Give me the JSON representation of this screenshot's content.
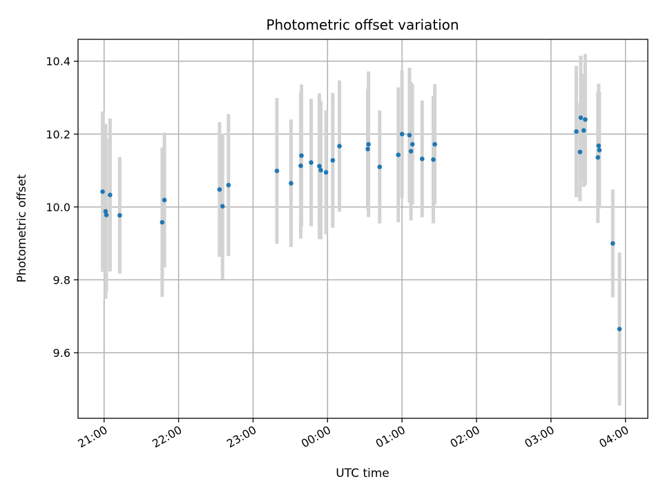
{
  "chart_data": {
    "type": "scatter",
    "title": "Photometric offset variation",
    "xlabel": "UTC time",
    "ylabel": "Photometric offset",
    "x_unit": "hours since 00:00 UTC",
    "xlim": [
      -3.35,
      4.3
    ],
    "ylim": [
      9.42,
      10.46
    ],
    "x_ticks": [
      -3,
      -2,
      -1,
      0,
      1,
      2,
      3,
      4
    ],
    "x_tick_labels": [
      "21:00",
      "22:00",
      "23:00",
      "00:00",
      "01:00",
      "02:00",
      "03:00",
      "04:00"
    ],
    "y_ticks": [
      9.6,
      9.8,
      10.0,
      10.2,
      10.4
    ],
    "y_tick_labels": [
      "9.6",
      "9.8",
      "10.0",
      "10.2",
      "10.4"
    ],
    "grid": true,
    "colors": {
      "points": "#1f77b4",
      "errorbars": "#d3d3d3"
    },
    "series": [
      {
        "points": [
          {
            "x": -3.02,
            "y": 10.042,
            "err": 0.22
          },
          {
            "x": -2.98,
            "y": 9.988,
            "err": 0.24
          },
          {
            "x": -2.97,
            "y": 9.978,
            "err": 0.21
          },
          {
            "x": -2.92,
            "y": 10.033,
            "err": 0.21
          },
          {
            "x": -2.79,
            "y": 9.977,
            "err": 0.16
          },
          {
            "x": -2.22,
            "y": 9.958,
            "err": 0.205
          },
          {
            "x": -2.19,
            "y": 10.019,
            "err": 0.185
          },
          {
            "x": -1.45,
            "y": 10.048,
            "err": 0.185
          },
          {
            "x": -1.41,
            "y": 10.002,
            "err": 0.2
          },
          {
            "x": -1.33,
            "y": 10.06,
            "err": 0.195
          },
          {
            "x": -0.68,
            "y": 10.099,
            "err": 0.2
          },
          {
            "x": -0.49,
            "y": 10.065,
            "err": 0.175
          },
          {
            "x": -0.36,
            "y": 10.113,
            "err": 0.2
          },
          {
            "x": -0.35,
            "y": 10.141,
            "err": 0.195
          },
          {
            "x": -0.22,
            "y": 10.122,
            "err": 0.175
          },
          {
            "x": -0.11,
            "y": 10.112,
            "err": 0.2
          },
          {
            "x": -0.09,
            "y": 10.101,
            "err": 0.19
          },
          {
            "x": -0.02,
            "y": 10.095,
            "err": 0.17
          },
          {
            "x": 0.07,
            "y": 10.128,
            "err": 0.185
          },
          {
            "x": 0.16,
            "y": 10.167,
            "err": 0.18
          },
          {
            "x": 0.54,
            "y": 10.159,
            "err": 0.165
          },
          {
            "x": 0.55,
            "y": 10.172,
            "err": 0.2
          },
          {
            "x": 0.7,
            "y": 10.11,
            "err": 0.155
          },
          {
            "x": 0.95,
            "y": 10.143,
            "err": 0.185
          },
          {
            "x": 1.0,
            "y": 10.2,
            "err": 0.175
          },
          {
            "x": 1.1,
            "y": 10.197,
            "err": 0.185
          },
          {
            "x": 1.12,
            "y": 10.153,
            "err": 0.19
          },
          {
            "x": 1.14,
            "y": 10.172,
            "err": 0.165
          },
          {
            "x": 1.27,
            "y": 10.132,
            "err": 0.16
          },
          {
            "x": 1.42,
            "y": 10.13,
            "err": 0.175
          },
          {
            "x": 1.44,
            "y": 10.172,
            "err": 0.165
          },
          {
            "x": 3.34,
            "y": 10.207,
            "err": 0.18
          },
          {
            "x": 3.39,
            "y": 10.151,
            "err": 0.135
          },
          {
            "x": 3.4,
            "y": 10.245,
            "err": 0.17
          },
          {
            "x": 3.44,
            "y": 10.21,
            "err": 0.155
          },
          {
            "x": 3.46,
            "y": 10.24,
            "err": 0.18
          },
          {
            "x": 3.63,
            "y": 10.136,
            "err": 0.18
          },
          {
            "x": 3.64,
            "y": 10.168,
            "err": 0.17
          },
          {
            "x": 3.65,
            "y": 10.156,
            "err": 0.16
          },
          {
            "x": 3.83,
            "y": 9.9,
            "err": 0.148
          },
          {
            "x": 3.92,
            "y": 9.665,
            "err": 0.21
          }
        ]
      }
    ]
  }
}
